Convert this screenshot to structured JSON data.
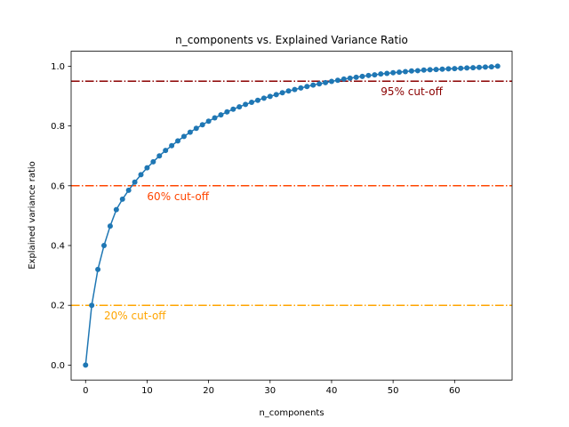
{
  "chart_data": {
    "type": "line",
    "title": "n_components vs. Explained Variance Ratio",
    "xlabel": "n_components",
    "ylabel": "Explained variance ratio",
    "xlim": [
      -2.35,
      69.35
    ],
    "ylim": [
      -0.05,
      1.05
    ],
    "xticks": [
      0,
      10,
      20,
      30,
      40,
      50,
      60
    ],
    "yticks": [
      0.0,
      0.2,
      0.4,
      0.6,
      0.8,
      1.0
    ],
    "grid": false,
    "line_color": "#1f77b4",
    "series": [
      {
        "x": [
          0,
          1,
          2,
          3,
          4,
          5,
          6,
          7,
          8,
          9,
          10,
          11,
          12,
          13,
          14,
          15,
          16,
          17,
          18,
          19,
          20,
          21,
          22,
          23,
          24,
          25,
          26,
          27,
          28,
          29,
          30,
          31,
          32,
          33,
          34,
          35,
          36,
          37,
          38,
          39,
          40,
          41,
          42,
          43,
          44,
          45,
          46,
          47,
          48,
          49,
          50,
          51,
          52,
          53,
          54,
          55,
          56,
          57,
          58,
          59,
          60,
          61,
          62,
          63,
          64,
          65,
          66,
          67
        ],
        "values": [
          0.0,
          0.2,
          0.32,
          0.4,
          0.465,
          0.52,
          0.555,
          0.585,
          0.612,
          0.637,
          0.66,
          0.68,
          0.7,
          0.718,
          0.734,
          0.75,
          0.765,
          0.779,
          0.792,
          0.804,
          0.816,
          0.827,
          0.837,
          0.847,
          0.856,
          0.864,
          0.872,
          0.879,
          0.886,
          0.893,
          0.899,
          0.905,
          0.911,
          0.917,
          0.922,
          0.927,
          0.932,
          0.937,
          0.941,
          0.945,
          0.949,
          0.953,
          0.957,
          0.96,
          0.963,
          0.966,
          0.969,
          0.971,
          0.974,
          0.976,
          0.978,
          0.98,
          0.982,
          0.984,
          0.985,
          0.987,
          0.988,
          0.989,
          0.99,
          0.991,
          0.992,
          0.993,
          0.994,
          0.995,
          0.996,
          0.997,
          0.998,
          1.0
        ]
      }
    ],
    "cutoffs": [
      {
        "value": 0.95,
        "label": "95% cut-off",
        "color": "#8b0000",
        "label_x": 48
      },
      {
        "value": 0.6,
        "label": "60% cut-off",
        "color": "#ff4500",
        "label_x": 10
      },
      {
        "value": 0.2,
        "label": "20% cut-off",
        "color": "#ffa500",
        "label_x": 3
      }
    ]
  }
}
